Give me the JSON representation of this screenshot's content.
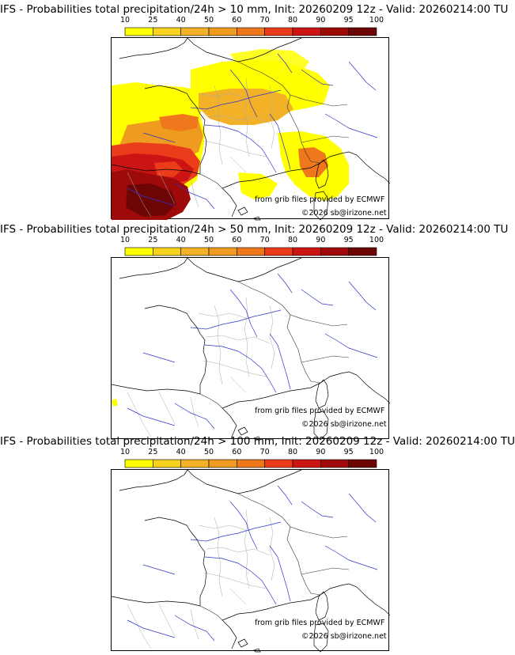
{
  "colorbar": {
    "ticks": [
      "10",
      "25",
      "40",
      "50",
      "60",
      "70",
      "80",
      "90",
      "95",
      "100"
    ],
    "colors": [
      "#ffff00",
      "#f7d21e",
      "#f2b126",
      "#ef9b1f",
      "#ee781b",
      "#ea3c1b",
      "#cc1414",
      "#9e0a0a",
      "#6e0505"
    ]
  },
  "panels": [
    {
      "title": "IFS - Probabilities total precipitation/24h > 10 mm, Init: 20260209 12z - Valid: 20260214:00 TU",
      "credit_source": "from grib files provided by ECMWF",
      "credit_copyright": "©2026 sb@irizone.net",
      "threshold_mm": 10
    },
    {
      "title": "IFS - Probabilities total precipitation/24h > 50 mm, Init: 20260209 12z - Valid: 20260214:00 TU",
      "credit_source": "from grib files provided by ECMWF",
      "credit_copyright": "©2026 sb@irizone.net",
      "threshold_mm": 50
    },
    {
      "title": "IFS - Probabilities total precipitation/24h > 100 mm, Init: 20260209 12z - Valid: 20260214:00 TU",
      "credit_source": "from grib files provided by ECMWF",
      "credit_copyright": "©2026 sb@irizone.net",
      "threshold_mm": 100
    }
  ]
}
